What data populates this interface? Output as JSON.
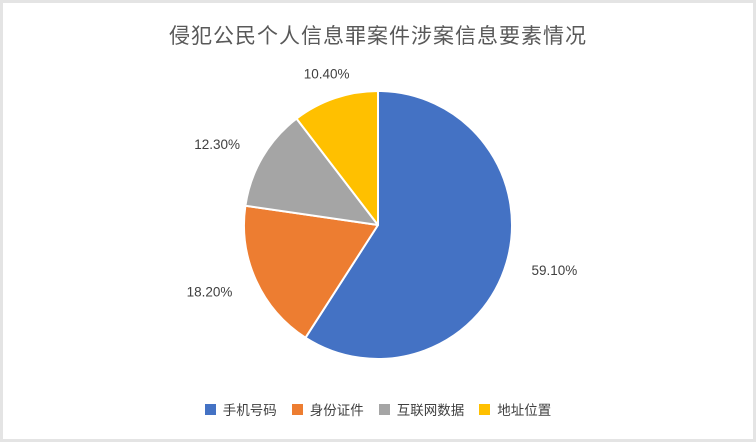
{
  "page": {
    "background": "#ffffff",
    "border_color": "#e4e4e4"
  },
  "chart_data": {
    "type": "pie",
    "title": "侵犯公民个人信息罪案件涉案信息要素情况",
    "title_color": "#595959",
    "label_color": "#404040",
    "start_angle_deg": 0,
    "direction": "clockwise",
    "legend_position": "bottom",
    "data_labels": "outside",
    "slice_border_color": "#ffffff",
    "slices": [
      {
        "label": "手机号码",
        "value": 59.1,
        "display": "59.10%",
        "color": "#4472C4"
      },
      {
        "label": "身份证件",
        "value": 18.2,
        "display": "18.20%",
        "color": "#ED7D31"
      },
      {
        "label": "互联网数据",
        "value": 12.3,
        "display": "12.30%",
        "color": "#A5A5A5"
      },
      {
        "label": "地址位置",
        "value": 10.4,
        "display": "10.40%",
        "color": "#FFC000"
      }
    ]
  }
}
